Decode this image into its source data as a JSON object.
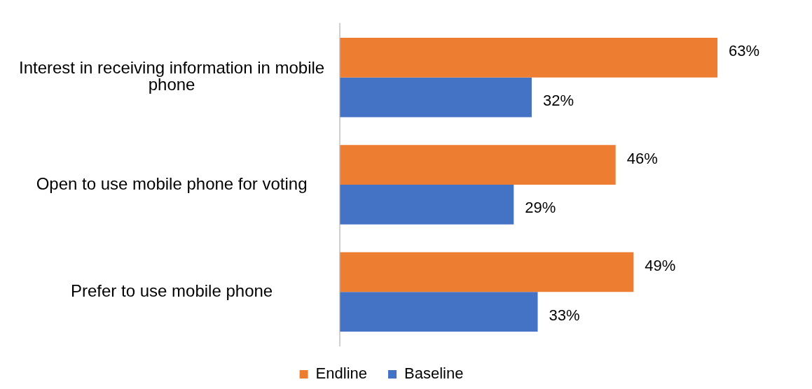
{
  "chart_data": {
    "type": "bar",
    "orientation": "horizontal",
    "categories": [
      "Interest in receiving information in mobile phone",
      "Open to use mobile phone for voting",
      "Prefer to use mobile phone"
    ],
    "series": [
      {
        "name": "Endline",
        "color": "#ed7d31",
        "values": [
          63,
          46,
          49
        ],
        "value_labels": [
          "63%",
          "46%",
          "49%"
        ]
      },
      {
        "name": "Baseline",
        "color": "#4472c4",
        "values": [
          32,
          29,
          33
        ],
        "value_labels": [
          "32%",
          "29%",
          "33%"
        ]
      }
    ],
    "legend": "bottom",
    "tick_labels": "y"
  }
}
